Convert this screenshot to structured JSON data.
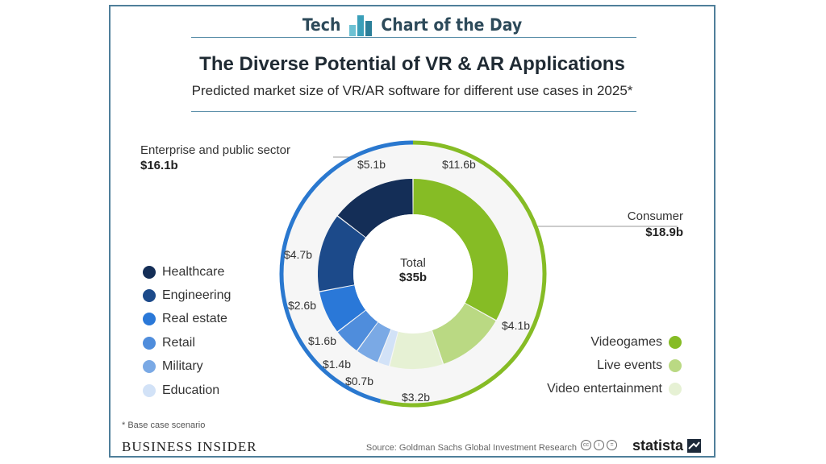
{
  "header": {
    "left": "Tech",
    "right": "Chart of the Day"
  },
  "chart_data": {
    "type": "pie",
    "title": "The Diverse Potential of VR & AR Applications",
    "subtitle": "Predicted market size of VR/AR software for different use cases in 2025*",
    "center_label": "Total",
    "center_value": "$35b",
    "total": 35,
    "groups": [
      {
        "name": "Consumer",
        "value_label": "$18.9b",
        "value": 18.9,
        "color": "#86bc25"
      },
      {
        "name": "Enterprise and public sector",
        "value_label": "$16.1b",
        "value": 16.1,
        "color": "#2a78cf"
      }
    ],
    "slices": [
      {
        "name": "Videogames",
        "value": 11.6,
        "label": "$11.6b",
        "color": "#86bc25",
        "group": "Consumer"
      },
      {
        "name": "Live events",
        "value": 4.1,
        "label": "$4.1b",
        "color": "#bad983",
        "group": "Consumer"
      },
      {
        "name": "Video entertainment",
        "value": 3.2,
        "label": "$3.2b",
        "color": "#e6f1d4",
        "group": "Consumer"
      },
      {
        "name": "Education",
        "value": 0.7,
        "label": "$0.7b",
        "color": "#d2e2f7",
        "group": "Enterprise and public sector"
      },
      {
        "name": "Military",
        "value": 1.4,
        "label": "$1.4b",
        "color": "#7aa9e5",
        "group": "Enterprise and public sector"
      },
      {
        "name": "Retail",
        "value": 1.6,
        "label": "$1.6b",
        "color": "#4f8ddc",
        "group": "Enterprise and public sector"
      },
      {
        "name": "Real estate",
        "value": 2.6,
        "label": "$2.6b",
        "color": "#2a78d8",
        "group": "Enterprise and public sector"
      },
      {
        "name": "Engineering",
        "value": 4.7,
        "label": "$4.7b",
        "color": "#1c4a8a",
        "group": "Enterprise and public sector"
      },
      {
        "name": "Healthcare",
        "value": 5.1,
        "label": "$5.1b",
        "color": "#142e57",
        "group": "Enterprise and public sector"
      }
    ],
    "legend_left": [
      "Healthcare",
      "Engineering",
      "Real estate",
      "Retail",
      "Military",
      "Education"
    ],
    "legend_right": [
      "Videogames",
      "Live events",
      "Video entertainment"
    ]
  },
  "footer": {
    "footnote": "* Base case scenario",
    "publisher": "BUSINESS INSIDER",
    "source": "Source: Goldman Sachs Global Investment Research",
    "brand": "statista"
  }
}
